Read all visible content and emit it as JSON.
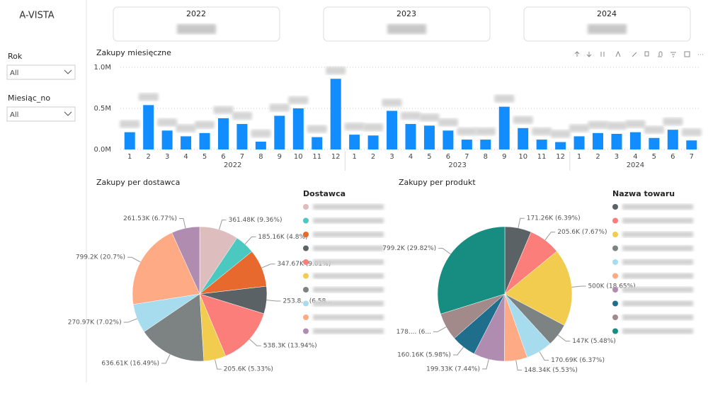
{
  "sidebar": {
    "title": "A-VISTA",
    "filters": [
      {
        "label": "Rok",
        "value": "All"
      },
      {
        "label": "Miesiąc_no",
        "value": "All"
      }
    ]
  },
  "kpi_cards": [
    {
      "title": "2022"
    },
    {
      "title": "2023"
    },
    {
      "title": "2024"
    }
  ],
  "chart_data": [
    {
      "type": "bar",
      "title": "Zakupy miesięczne",
      "color": "#118DFF",
      "grid": true,
      "ylim": [
        0,
        1
      ],
      "yticks": [
        {
          "value": 0,
          "label": "0.0M"
        },
        {
          "value": 0.5,
          "label": "0.5M"
        },
        {
          "value": 1,
          "label": "1.0M"
        }
      ],
      "groups": [
        {
          "name": "2022",
          "categories": [
            "1",
            "2",
            "3",
            "4",
            "5",
            "6",
            "7",
            "8",
            "9",
            "10",
            "11",
            "12"
          ],
          "values": [
            0.21,
            0.54,
            0.23,
            0.16,
            0.2,
            0.38,
            0.31,
            0.095,
            0.41,
            0.5,
            0.15,
            0.86
          ]
        },
        {
          "name": "2023",
          "categories": [
            "1",
            "2",
            "3",
            "4",
            "5",
            "6",
            "7",
            "8",
            "9",
            "10",
            "11",
            "12"
          ],
          "values": [
            0.18,
            0.17,
            0.47,
            0.31,
            0.29,
            0.23,
            0.12,
            0.12,
            0.52,
            0.26,
            0.12,
            0.09
          ]
        },
        {
          "name": "2024",
          "categories": [
            "1",
            "2",
            "3",
            "4",
            "5",
            "6",
            "7"
          ],
          "values": [
            0.16,
            0.2,
            0.19,
            0.21,
            0.14,
            0.24,
            0.11
          ]
        }
      ]
    },
    {
      "type": "pie",
      "title": "Zakupy per dostawca",
      "legend_title": "Dostawca",
      "values": [
        361.48,
        185.16,
        347.67,
        253.8,
        538.3,
        205.6,
        636.61,
        270.97,
        799.2,
        261.53
      ],
      "value_labels": [
        "361.48K (9.36%)",
        "185.16K (4.8%)",
        "347.67K (9.01%)",
        "253.8... (6,58...",
        "538.3K (13.94%)",
        "205.6K (5.33%)",
        "636.61K (16.49%)",
        "270.97K (7.02%)",
        "799.2K (20.7%)",
        "261.53K (6.77%)"
      ],
      "colors": [
        "#DDBDBD",
        "#4BC8C0",
        "#E8692E",
        "#5A6265",
        "#FC7E7A",
        "#F2CC4F",
        "#7D8383",
        "#A6DCEE",
        "#FDAA85",
        "#B08CB0"
      ]
    },
    {
      "type": "pie",
      "title": "Zakupy per produkt",
      "legend_title": "Nazwa towaru",
      "values": [
        171.26,
        205.6,
        500,
        147,
        170.69,
        148.34,
        199.33,
        160.16,
        178,
        799.2
      ],
      "value_labels": [
        "171.26K (6.39%)",
        "205.6K (7.67%)",
        "500K (18.65%)",
        "147K (5.48%)",
        "170.69K (6.37%)",
        "148.34K (5.53%)",
        "199.33K (7.44%)",
        "160.16K (5.98%)",
        "178.... (6...",
        "799.2K (29.82%)"
      ],
      "colors": [
        "#5A6265",
        "#FC7E7A",
        "#F2CC4F",
        "#7D8383",
        "#A6DCEE",
        "#FDAA85",
        "#B08CB0",
        "#1F6E8C",
        "#A38A8A",
        "#168D80"
      ]
    }
  ]
}
